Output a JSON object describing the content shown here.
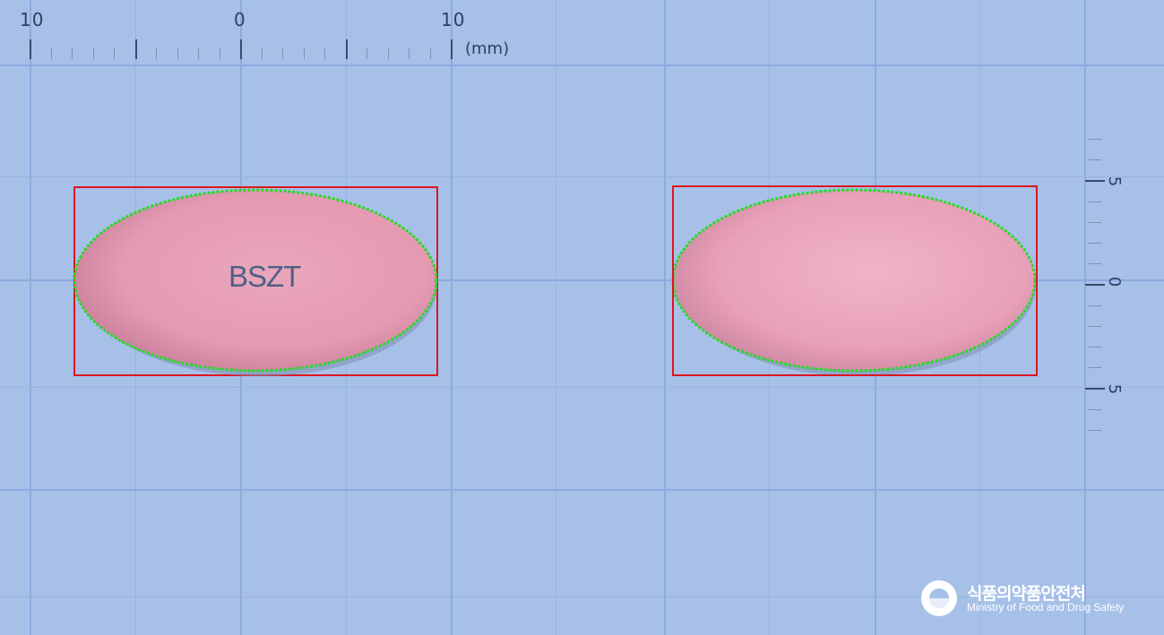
{
  "top_ruler": {
    "labels": [
      "10",
      "0",
      "10"
    ],
    "unit": "(mm)"
  },
  "right_ruler": {
    "labels": [
      "5",
      "0",
      "5"
    ]
  },
  "pills": [
    {
      "side": "front",
      "imprint": "BSZT",
      "color": "#e8a2b8"
    },
    {
      "side": "back",
      "imprint": "",
      "color": "#e8a2b8"
    }
  ],
  "colors": {
    "background": "#a6c0e8",
    "bounding_box": "#e0141e",
    "contour": "#22dd22"
  },
  "logo": {
    "korean": "식품의약품안전처",
    "english": "Ministry of Food and Drug Safety"
  }
}
